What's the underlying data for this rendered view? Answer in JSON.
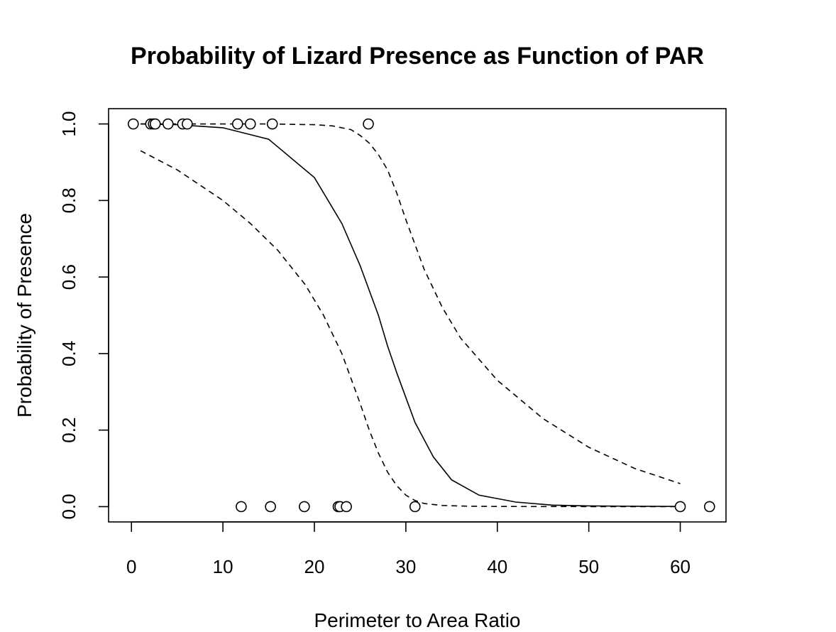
{
  "chart_data": {
    "type": "scatter",
    "title": "Probability of Lizard Presence as Function of PAR",
    "xlabel": "Perimeter to Area Ratio",
    "ylabel": "Probability of Presence",
    "xlim": [
      -2.5,
      65
    ],
    "ylim": [
      -0.04,
      1.04
    ],
    "x_ticks": [
      0,
      10,
      20,
      30,
      40,
      50,
      60
    ],
    "x_tick_labels": [
      "0",
      "10",
      "20",
      "30",
      "40",
      "50",
      "60"
    ],
    "y_ticks": [
      0.0,
      0.2,
      0.4,
      0.6,
      0.8,
      1.0
    ],
    "y_tick_labels": [
      "0.0",
      "0.2",
      "0.4",
      "0.6",
      "0.8",
      "1.0"
    ],
    "grid": false,
    "legend": "none",
    "points": {
      "x": [
        0.2,
        2.1,
        2.4,
        2.6,
        4.0,
        5.6,
        6.1,
        11.6,
        13.0,
        15.4,
        25.9,
        12.0,
        15.2,
        18.9,
        22.6,
        22.8,
        23.5,
        31.0,
        60.0,
        63.2
      ],
      "y": [
        1,
        1,
        1,
        1,
        1,
        1,
        1,
        1,
        1,
        1,
        1,
        0,
        0,
        0,
        0,
        0,
        0,
        0,
        0,
        0
      ]
    },
    "fit_line": {
      "x": [
        1,
        5,
        10,
        15,
        20,
        23,
        25,
        27,
        28,
        29,
        31,
        33,
        35,
        38,
        42,
        46,
        50,
        55,
        60
      ],
      "y": [
        1.0,
        0.998,
        0.99,
        0.96,
        0.86,
        0.74,
        0.63,
        0.5,
        0.42,
        0.35,
        0.22,
        0.13,
        0.07,
        0.03,
        0.012,
        0.004,
        0.002,
        0.001,
        0.0005
      ]
    },
    "upper_band": {
      "x": [
        1,
        10,
        15,
        20,
        22,
        24,
        25,
        26,
        27,
        28,
        29,
        30,
        32,
        34,
        36,
        40,
        45,
        50,
        55,
        60
      ],
      "y": [
        1.0,
        1.0,
        1.0,
        0.998,
        0.995,
        0.985,
        0.97,
        0.95,
        0.92,
        0.88,
        0.82,
        0.75,
        0.62,
        0.52,
        0.44,
        0.33,
        0.23,
        0.155,
        0.1,
        0.06
      ]
    },
    "lower_band": {
      "x": [
        1,
        5,
        10,
        13,
        16,
        19,
        21,
        23,
        25,
        26,
        27,
        28,
        29,
        30,
        31,
        32,
        34,
        37,
        40,
        45,
        50,
        55,
        60
      ],
      "y": [
        0.93,
        0.88,
        0.8,
        0.74,
        0.67,
        0.58,
        0.5,
        0.4,
        0.27,
        0.2,
        0.14,
        0.09,
        0.055,
        0.03,
        0.016,
        0.008,
        0.003,
        0.001,
        0.0005,
        0.0002,
        0.0001,
        0.0001,
        0.0001
      ]
    }
  }
}
